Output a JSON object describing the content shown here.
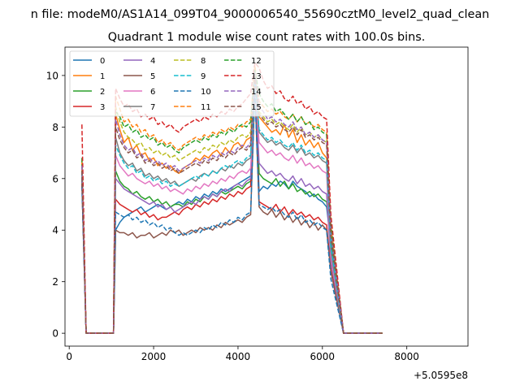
{
  "header": {
    "suptitle": "n file: modeM0/AS1A14_099T04_9000006540_55690cztM0_level2_quad_clean"
  },
  "chart_data": {
    "type": "line",
    "title": "Quadrant 1 module wise count rates with 100.0s bins.",
    "xlabel": "",
    "ylabel": "",
    "x_offset_label": "+5.0595e8",
    "xlim": [
      -100,
      9450
    ],
    "ylim": [
      -0.5,
      11.1
    ],
    "x_ticks": [
      0,
      2000,
      4000,
      6000,
      8000
    ],
    "y_ticks": [
      0,
      2,
      4,
      6,
      8,
      10
    ],
    "grid": false,
    "legend_position": "top-left",
    "legend_columns": 4,
    "colors": [
      "#1f77b4",
      "#ff7f0e",
      "#2ca02c",
      "#d62728",
      "#9467bd",
      "#8c564b",
      "#e377c2",
      "#7f7f7f",
      "#bcbd22",
      "#17becf",
      "#1f77b4",
      "#ff7f0e",
      "#2ca02c",
      "#d62728",
      "#9467bd",
      "#8c564b"
    ],
    "x_start": 300,
    "x_step": 100,
    "gaps": [
      [
        400,
        1050
      ],
      [
        6500,
        7420
      ]
    ],
    "series": [
      {
        "name": "0",
        "style": "solid",
        "values": [
          6.0,
          4.0,
          4.3,
          4.5,
          4.6,
          4.7,
          4.8,
          4.9,
          4.7,
          4.8,
          4.9,
          5.0,
          4.9,
          4.8,
          4.9,
          5.0,
          5.1,
          5.0,
          5.2,
          5.1,
          5.3,
          5.2,
          5.4,
          5.3,
          5.5,
          5.4,
          5.6,
          5.5,
          5.6,
          5.7,
          5.8,
          5.9,
          6.0,
          6.1,
          10.1,
          5.5,
          5.7,
          5.6,
          5.8,
          5.7,
          5.9,
          5.8,
          5.6,
          5.9,
          5.7,
          5.6,
          5.5,
          5.3,
          5.4,
          5.2,
          5.1,
          4.9,
          3.5
        ]
      },
      {
        "name": "1",
        "style": "solid",
        "values": [
          6.5,
          8.5,
          7.9,
          7.4,
          7.6,
          7.1,
          7.3,
          6.9,
          7.0,
          6.7,
          6.8,
          6.5,
          6.6,
          6.4,
          6.5,
          6.3,
          6.2,
          6.4,
          6.5,
          6.6,
          6.8,
          6.7,
          6.9,
          6.8,
          7.0,
          7.1,
          6.9,
          7.2,
          7.0,
          7.3,
          7.4,
          7.2,
          7.5,
          7.6,
          9.9,
          8.4,
          8.2,
          8.0,
          7.8,
          7.9,
          7.7,
          8.1,
          7.6,
          7.9,
          7.4,
          7.7,
          7.3,
          7.5,
          7.2,
          7.4,
          7.0,
          6.8,
          4.0
        ]
      },
      {
        "name": "2",
        "style": "solid",
        "values": [
          6.2,
          6.3,
          5.9,
          5.7,
          5.6,
          5.4,
          5.5,
          5.3,
          5.2,
          5.3,
          5.1,
          5.2,
          5.0,
          5.1,
          4.9,
          5.0,
          5.0,
          4.9,
          5.1,
          5.0,
          5.2,
          5.1,
          5.3,
          5.2,
          5.4,
          5.3,
          5.5,
          5.4,
          5.5,
          5.6,
          5.7,
          5.6,
          5.8,
          5.9,
          10.2,
          6.2,
          6.0,
          5.9,
          5.8,
          6.0,
          5.7,
          5.9,
          5.6,
          5.8,
          5.5,
          5.6,
          5.4,
          5.5,
          5.3,
          5.4,
          5.2,
          5.1,
          3.7
        ]
      },
      {
        "name": "3",
        "style": "solid",
        "values": [
          5.8,
          5.2,
          5.0,
          4.9,
          4.8,
          4.7,
          4.8,
          4.6,
          4.7,
          4.5,
          4.6,
          4.4,
          4.5,
          4.5,
          4.6,
          4.7,
          4.6,
          4.8,
          4.9,
          4.8,
          5.0,
          4.9,
          5.1,
          5.0,
          5.2,
          5.1,
          5.3,
          5.2,
          5.4,
          5.3,
          5.5,
          5.4,
          5.6,
          5.7,
          9.8,
          5.1,
          5.0,
          4.9,
          4.8,
          5.0,
          4.7,
          4.9,
          4.6,
          4.8,
          4.6,
          4.7,
          4.5,
          4.6,
          4.4,
          4.5,
          4.3,
          4.2,
          2.5
        ]
      },
      {
        "name": "4",
        "style": "solid",
        "values": [
          6.1,
          6.0,
          5.8,
          5.6,
          5.5,
          5.4,
          5.3,
          5.2,
          5.1,
          5.0,
          5.1,
          4.9,
          5.0,
          4.8,
          4.9,
          4.7,
          4.8,
          4.9,
          5.0,
          5.1,
          5.0,
          5.2,
          5.3,
          5.2,
          5.4,
          5.3,
          5.5,
          5.6,
          5.5,
          5.7,
          5.8,
          5.7,
          5.9,
          6.0,
          9.7,
          6.6,
          6.4,
          6.2,
          6.3,
          6.1,
          6.2,
          6.0,
          5.9,
          6.1,
          5.8,
          6.0,
          5.7,
          5.8,
          5.6,
          5.7,
          5.5,
          5.4,
          2.8
        ]
      },
      {
        "name": "5",
        "style": "solid",
        "values": [
          5.9,
          4.0,
          3.9,
          3.9,
          3.8,
          3.9,
          3.7,
          3.8,
          3.8,
          3.9,
          3.7,
          3.8,
          3.9,
          3.8,
          4.0,
          3.9,
          4.0,
          3.8,
          3.9,
          4.0,
          3.9,
          4.1,
          4.0,
          4.1,
          4.0,
          4.2,
          4.1,
          4.3,
          4.2,
          4.3,
          4.4,
          4.3,
          4.5,
          4.6,
          9.5,
          4.9,
          4.7,
          4.6,
          4.8,
          4.5,
          4.7,
          4.4,
          4.6,
          4.3,
          4.5,
          4.2,
          4.4,
          4.1,
          4.3,
          4.0,
          4.2,
          4.0,
          2.4
        ]
      },
      {
        "name": "6",
        "style": "solid",
        "values": [
          6.4,
          6.9,
          6.5,
          6.3,
          6.1,
          6.2,
          6.0,
          5.9,
          5.8,
          5.9,
          5.7,
          5.8,
          5.6,
          5.7,
          5.5,
          5.6,
          5.5,
          5.4,
          5.6,
          5.5,
          5.7,
          5.6,
          5.8,
          5.7,
          5.9,
          5.8,
          6.0,
          5.9,
          6.1,
          6.0,
          6.2,
          6.3,
          6.2,
          6.4,
          9.6,
          7.4,
          7.2,
          7.0,
          7.1,
          6.9,
          7.0,
          6.8,
          6.7,
          6.9,
          6.6,
          6.8,
          6.5,
          6.6,
          6.4,
          6.5,
          6.3,
          6.2,
          3.0
        ]
      },
      {
        "name": "7",
        "style": "solid",
        "values": [
          6.3,
          7.6,
          7.0,
          6.7,
          6.5,
          6.6,
          6.3,
          6.4,
          6.1,
          6.2,
          6.0,
          6.1,
          5.9,
          6.0,
          5.8,
          5.9,
          5.7,
          5.8,
          5.9,
          6.0,
          5.9,
          6.1,
          6.2,
          6.1,
          6.3,
          6.2,
          6.4,
          6.3,
          6.5,
          6.4,
          6.6,
          6.5,
          6.7,
          6.8,
          10.0,
          7.8,
          7.6,
          7.4,
          7.5,
          7.3,
          7.4,
          7.2,
          7.1,
          7.3,
          7.0,
          7.2,
          6.9,
          7.0,
          6.8,
          6.9,
          6.7,
          6.6,
          3.2
        ]
      },
      {
        "name": "8",
        "style": "dashed",
        "values": [
          6.6,
          8.8,
          8.2,
          7.8,
          7.6,
          7.5,
          7.3,
          7.4,
          7.1,
          7.2,
          7.0,
          7.1,
          6.9,
          7.0,
          6.8,
          6.9,
          6.7,
          6.8,
          6.9,
          7.0,
          7.1,
          7.0,
          7.2,
          7.1,
          7.3,
          7.2,
          7.4,
          7.3,
          7.5,
          7.4,
          7.6,
          7.7,
          7.6,
          7.8,
          10.3,
          8.6,
          8.4,
          8.2,
          8.3,
          8.1,
          8.2,
          8.0,
          7.9,
          8.1,
          7.8,
          8.0,
          7.7,
          7.8,
          7.6,
          7.7,
          7.5,
          7.4,
          4.0
        ]
      },
      {
        "name": "9",
        "style": "dashed",
        "values": [
          6.2,
          7.3,
          6.9,
          6.6,
          6.4,
          6.5,
          6.2,
          6.3,
          6.0,
          6.1,
          5.9,
          6.0,
          5.8,
          5.9,
          5.7,
          5.8,
          5.7,
          5.8,
          5.9,
          6.0,
          6.1,
          6.0,
          6.2,
          6.1,
          6.3,
          6.2,
          6.4,
          6.5,
          6.4,
          6.6,
          6.7,
          6.6,
          6.8,
          6.9,
          9.9,
          7.9,
          7.7,
          7.5,
          7.6,
          7.4,
          7.5,
          7.3,
          7.2,
          7.4,
          7.1,
          7.3,
          7.0,
          7.1,
          6.9,
          7.0,
          6.8,
          6.7,
          3.4
        ]
      },
      {
        "name": "10",
        "style": "dashed",
        "values": [
          5.7,
          4.7,
          4.6,
          4.5,
          4.6,
          4.4,
          4.5,
          4.3,
          4.4,
          4.2,
          4.3,
          4.1,
          4.2,
          4.0,
          4.1,
          3.9,
          3.8,
          3.9,
          3.8,
          3.9,
          4.0,
          3.9,
          4.1,
          4.0,
          4.2,
          4.1,
          4.3,
          4.2,
          4.4,
          4.3,
          4.5,
          4.4,
          4.6,
          4.7,
          9.4,
          5.0,
          4.9,
          4.8,
          4.9,
          4.7,
          4.8,
          4.6,
          4.5,
          4.7,
          4.4,
          4.6,
          4.3,
          4.4,
          4.2,
          4.3,
          4.1,
          4.0,
          2.1
        ]
      },
      {
        "name": "11",
        "style": "dashed",
        "values": [
          6.7,
          9.2,
          8.7,
          8.2,
          8.3,
          8.0,
          8.1,
          7.8,
          7.9,
          7.6,
          7.7,
          7.4,
          7.5,
          7.3,
          7.4,
          7.2,
          7.1,
          7.3,
          7.4,
          7.5,
          7.6,
          7.5,
          7.7,
          7.6,
          7.8,
          7.7,
          7.9,
          7.8,
          8.0,
          7.9,
          8.1,
          8.0,
          8.2,
          8.3,
          10.4,
          9.0,
          8.8,
          8.6,
          8.7,
          8.5,
          8.6,
          8.4,
          8.3,
          8.5,
          8.2,
          8.4,
          8.1,
          8.2,
          8.0,
          8.1,
          7.9,
          7.8,
          4.2
        ]
      },
      {
        "name": "12",
        "style": "dashed",
        "values": [
          6.8,
          8.6,
          8.4,
          8.0,
          8.1,
          7.8,
          7.9,
          7.6,
          7.7,
          7.5,
          7.6,
          7.3,
          7.4,
          7.2,
          7.3,
          7.1,
          7.0,
          7.2,
          7.3,
          7.4,
          7.5,
          7.4,
          7.6,
          7.5,
          7.7,
          7.6,
          7.8,
          7.7,
          7.9,
          7.8,
          8.0,
          8.1,
          8.0,
          8.2,
          10.2,
          9.3,
          9.0,
          8.8,
          8.9,
          8.6,
          8.7,
          8.5,
          8.3,
          8.5,
          8.2,
          8.4,
          8.1,
          8.2,
          7.9,
          8.0,
          7.8,
          7.7,
          4.3
        ]
      },
      {
        "name": "13",
        "style": "dashed",
        "values": [
          8.1,
          9.5,
          9.1,
          8.8,
          8.9,
          8.6,
          8.7,
          8.4,
          8.5,
          8.3,
          8.4,
          8.1,
          8.2,
          8.0,
          8.1,
          7.9,
          7.8,
          8.0,
          8.1,
          8.2,
          8.3,
          8.2,
          8.4,
          8.3,
          8.5,
          8.4,
          8.6,
          8.5,
          8.7,
          8.6,
          8.8,
          8.9,
          9.1,
          9.3,
          10.5,
          10.3,
          9.8,
          9.5,
          9.6,
          9.3,
          9.4,
          9.1,
          9.0,
          9.2,
          8.9,
          9.0,
          8.7,
          8.8,
          8.5,
          8.6,
          8.4,
          8.3,
          4.6
        ]
      },
      {
        "name": "14",
        "style": "dashed",
        "values": [
          6.5,
          8.3,
          7.7,
          7.3,
          7.1,
          7.2,
          6.9,
          7.0,
          6.7,
          6.8,
          6.6,
          6.7,
          6.5,
          6.6,
          6.4,
          6.5,
          6.3,
          6.4,
          6.5,
          6.6,
          6.7,
          6.6,
          6.8,
          6.7,
          6.9,
          6.8,
          7.0,
          6.9,
          7.1,
          7.0,
          7.2,
          7.3,
          7.2,
          7.4,
          10.1,
          8.8,
          8.6,
          8.3,
          8.4,
          8.2,
          8.3,
          8.1,
          8.0,
          8.2,
          7.9,
          8.0,
          7.7,
          7.8,
          7.6,
          7.7,
          7.5,
          7.4,
          3.9
        ]
      },
      {
        "name": "15",
        "style": "dashed",
        "values": [
          6.3,
          8.0,
          7.5,
          7.2,
          7.0,
          7.1,
          6.8,
          6.9,
          6.6,
          6.7,
          6.5,
          6.6,
          6.4,
          6.5,
          6.3,
          6.4,
          6.2,
          6.3,
          6.4,
          6.5,
          6.6,
          6.5,
          6.7,
          6.6,
          6.8,
          6.7,
          6.9,
          6.8,
          7.0,
          6.9,
          7.1,
          7.2,
          7.1,
          7.3,
          10.0,
          8.5,
          8.3,
          8.1,
          8.2,
          8.0,
          8.1,
          7.9,
          7.8,
          8.0,
          7.7,
          7.9,
          7.6,
          7.7,
          7.5,
          7.6,
          7.4,
          7.3,
          3.8
        ]
      }
    ]
  }
}
